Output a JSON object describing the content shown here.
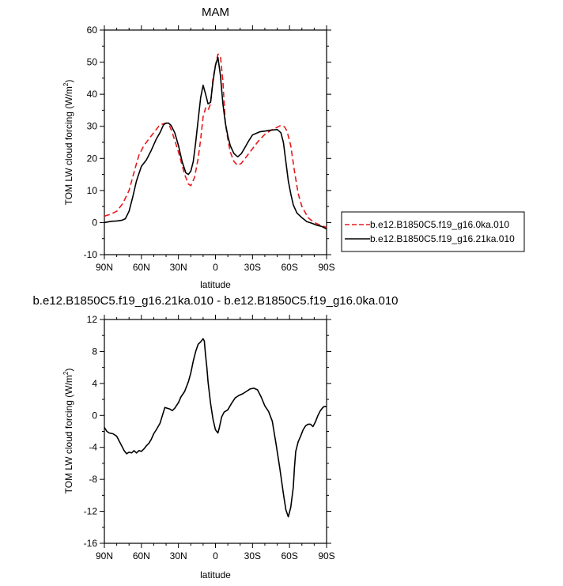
{
  "chart_data": [
    {
      "type": "line",
      "title": "MAM",
      "xlabel": "latitude",
      "ylabel": "TOM LW cloud forcing (W/m",
      "ylabel_sup": "2",
      "ylabel_close": ")",
      "xlim": [
        90,
        -90
      ],
      "ylim": [
        -10,
        60
      ],
      "x_ticks": [
        90,
        60,
        30,
        0,
        -30,
        -60,
        -90
      ],
      "x_tick_labels": [
        "90N",
        "60N",
        "30N",
        "0",
        "30S",
        "60S",
        "90S"
      ],
      "y_ticks": [
        -10,
        0,
        10,
        20,
        30,
        40,
        50,
        60
      ],
      "y_tick_labels": [
        "-10",
        "0",
        "10",
        "20",
        "30",
        "40",
        "50",
        "60"
      ],
      "legend_position": "right",
      "series": [
        {
          "name": "b.e12.B1850C5.f19_g16.0ka.010",
          "color": "#e8191c",
          "dash": "dashed",
          "x": [
            90,
            85,
            80,
            75,
            70,
            65,
            62,
            58,
            55,
            50,
            45,
            40,
            37,
            35,
            30,
            25,
            22,
            20,
            17,
            14,
            12,
            10,
            8,
            6,
            4,
            2,
            0,
            -2,
            -4,
            -6,
            -8,
            -10,
            -12,
            -15,
            -18,
            -21,
            -24,
            -27,
            -30,
            -35,
            -40,
            -45,
            -50,
            -53,
            -56,
            -58,
            -61,
            -64,
            -67,
            -70,
            -75,
            -80,
            -85,
            -90
          ],
          "y": [
            2,
            2.6,
            3.5,
            6,
            10,
            17,
            21,
            24,
            25.5,
            28,
            30.5,
            31,
            30,
            28,
            22,
            15,
            12,
            11.5,
            14,
            20,
            26,
            33,
            35.7,
            35,
            37,
            45,
            49,
            52.5,
            52,
            44,
            31,
            26,
            22,
            19,
            17.8,
            18.5,
            20,
            21.5,
            23,
            25.5,
            27.5,
            28.8,
            29.7,
            30.3,
            29.8,
            28.5,
            24,
            16,
            9,
            5,
            1.5,
            0,
            -0.8,
            -1.5
          ]
        },
        {
          "name": "b.e12.B1850C5.f19_g16.21ka.010",
          "color": "#000000",
          "dash": "solid",
          "x": [
            90,
            87,
            84,
            80,
            76,
            73,
            70,
            67,
            64,
            60,
            56,
            52,
            48,
            45,
            42,
            40,
            38,
            36,
            33,
            30,
            27,
            24,
            22,
            20,
            18,
            16,
            14,
            12,
            10,
            8,
            6,
            4,
            2,
            0,
            -2,
            -4,
            -6,
            -8,
            -10,
            -12,
            -15,
            -18,
            -21,
            -24,
            -27,
            -30,
            -33,
            -36,
            -40,
            -45,
            -50,
            -53,
            -55,
            -57,
            -59,
            -61,
            -63,
            -66,
            -70,
            -74,
            -78,
            -82,
            -86,
            -90
          ],
          "y": [
            0,
            0.2,
            0.4,
            0.5,
            0.7,
            1.2,
            3.5,
            8,
            13,
            17.5,
            19.5,
            22.5,
            26,
            28,
            30.5,
            31,
            31,
            30.3,
            28,
            24,
            19,
            15.5,
            15,
            16,
            19,
            25,
            32,
            39,
            42.8,
            40,
            37,
            37.5,
            44,
            49,
            51.5,
            46,
            37,
            31,
            27,
            24,
            21.5,
            20.5,
            21.5,
            23.5,
            25.5,
            27.3,
            27.8,
            28.3,
            28.5,
            28.8,
            29,
            28,
            25,
            19,
            13,
            9,
            5.5,
            3,
            1.5,
            0.3,
            -0.2,
            -0.8,
            -1.2,
            -2
          ]
        }
      ]
    },
    {
      "type": "line",
      "title": "b.e12.B1850C5.f19_g16.21ka.010 - b.e12.B1850C5.f19_g16.0ka.010",
      "xlabel": "latitude",
      "ylabel": "TOM LW cloud forcing (W/m",
      "ylabel_sup": "2",
      "ylabel_close": ")",
      "xlim": [
        90,
        -90
      ],
      "ylim": [
        -16,
        12
      ],
      "x_ticks": [
        90,
        60,
        30,
        0,
        -30,
        -60,
        -90
      ],
      "x_tick_labels": [
        "90N",
        "60N",
        "30N",
        "0",
        "30S",
        "60S",
        "90S"
      ],
      "y_ticks": [
        -16,
        -12,
        -8,
        -4,
        0,
        4,
        8,
        12
      ],
      "y_tick_labels": [
        "-16",
        "-12",
        "-8",
        "-4",
        "0",
        "4",
        "8",
        "12"
      ],
      "series": [
        {
          "color": "#000000",
          "dash": "solid",
          "x": [
            90,
            88,
            86,
            83,
            80,
            78,
            76,
            74,
            72,
            70,
            68,
            66,
            64,
            62,
            60,
            58,
            56,
            54,
            52,
            50,
            48,
            45,
            43,
            41,
            39,
            37,
            35,
            33,
            30,
            28,
            25,
            22,
            20,
            18,
            16,
            14,
            12,
            10,
            9,
            8,
            7,
            6,
            4,
            2,
            0,
            -2,
            -3,
            -5,
            -7,
            -10,
            -13,
            -16,
            -19,
            -22,
            -25,
            -28,
            -31,
            -34,
            -37,
            -40,
            -43,
            -46,
            -49,
            -52,
            -55,
            -57,
            -59,
            -61,
            -63,
            -64,
            -65,
            -67,
            -69,
            -71,
            -73,
            -75,
            -77,
            -79,
            -81,
            -83,
            -85,
            -87,
            -88,
            -90
          ],
          "y": [
            -1.5,
            -2,
            -2.2,
            -2.3,
            -2.6,
            -3.2,
            -3.8,
            -4.4,
            -4.8,
            -4.6,
            -4.7,
            -4.4,
            -4.7,
            -4.4,
            -4.5,
            -4.2,
            -3.8,
            -3.5,
            -3,
            -2.3,
            -1.8,
            -1,
            0,
            1,
            0.9,
            0.8,
            0.6,
            0.9,
            1.6,
            2.3,
            3,
            4.2,
            5.3,
            6.8,
            8,
            8.9,
            9.2,
            9.6,
            9.3,
            7.5,
            6,
            4.2,
            1.5,
            -0.5,
            -1.8,
            -2.2,
            -1.6,
            -0.2,
            0.4,
            0.7,
            1.5,
            2.2,
            2.5,
            2.7,
            3,
            3.3,
            3.4,
            3.2,
            2.3,
            1.2,
            0.5,
            -0.7,
            -3.5,
            -6.5,
            -9.8,
            -11.8,
            -12.7,
            -11.5,
            -9,
            -6.5,
            -4.5,
            -3.3,
            -2.6,
            -1.8,
            -1.3,
            -1.1,
            -1.1,
            -1.4,
            -0.8,
            0,
            0.6,
            1,
            1.1,
            1.1
          ]
        }
      ]
    }
  ]
}
